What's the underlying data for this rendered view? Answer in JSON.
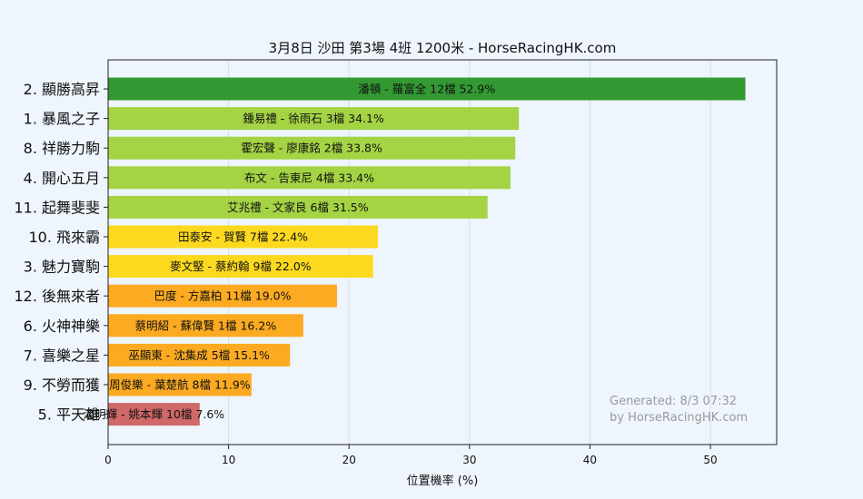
{
  "chart_data": {
    "type": "bar",
    "orientation": "horizontal",
    "title": "3月8日  沙田  第3場  4班  1200米 - HorseRacingHK.com",
    "xlabel": "位置機率 (%)",
    "ylabel": "",
    "xlim": [
      0,
      55.5
    ],
    "xticks": [
      0,
      10,
      20,
      30,
      40,
      50
    ],
    "grid": true,
    "bars": [
      {
        "category": "2. 顯勝高昇",
        "value": 52.9,
        "label": "潘頓 - 羅富全 12檔  52.9%",
        "color": "#339933"
      },
      {
        "category": "1. 暴風之子",
        "value": 34.1,
        "label": "鍾易禮 - 徐雨石 3檔  34.1%",
        "color": "#a4d344"
      },
      {
        "category": "8. 祥勝力駒",
        "value": 33.8,
        "label": "霍宏聲 - 廖康銘 2檔  33.8%",
        "color": "#a4d344"
      },
      {
        "category": "4. 開心五月",
        "value": 33.4,
        "label": "布文 - 告東尼 4檔  33.4%",
        "color": "#a4d344"
      },
      {
        "category": "11. 起舞斐斐",
        "value": 31.5,
        "label": "艾兆禮 - 文家良 6檔  31.5%",
        "color": "#a4d344"
      },
      {
        "category": "10. 飛來霸",
        "value": 22.4,
        "label": "田泰安 - 賀賢 7檔  22.4%",
        "color": "#fcd91f"
      },
      {
        "category": "3. 魅力寶駒",
        "value": 22.0,
        "label": "麥文堅 - 蔡約翰 9檔  22.0%",
        "color": "#fcd91f"
      },
      {
        "category": "12. 後無來者",
        "value": 19.0,
        "label": "巴度 - 方嘉柏 11檔  19.0%",
        "color": "#fbaa21"
      },
      {
        "category": "6. 火神神樂",
        "value": 16.2,
        "label": "蔡明紹 - 蘇偉賢 1檔  16.2%",
        "color": "#fbaa21"
      },
      {
        "category": "7. 喜樂之星",
        "value": 15.1,
        "label": "巫顯東 - 沈集成 5檔  15.1%",
        "color": "#fbaa21"
      },
      {
        "category": "9. 不勞而獲",
        "value": 11.9,
        "label": "周俊樂 - 葉楚航 8檔  11.9%",
        "color": "#fbaa21"
      },
      {
        "category": "5. 平天雄",
        "value": 7.6,
        "label": "潘明輝 - 姚本輝 10檔  7.6%",
        "color": "#d06868"
      }
    ]
  },
  "watermark": {
    "line1": "Generated: 8/3 07:32",
    "line2": "by HorseRacingHK.com"
  }
}
